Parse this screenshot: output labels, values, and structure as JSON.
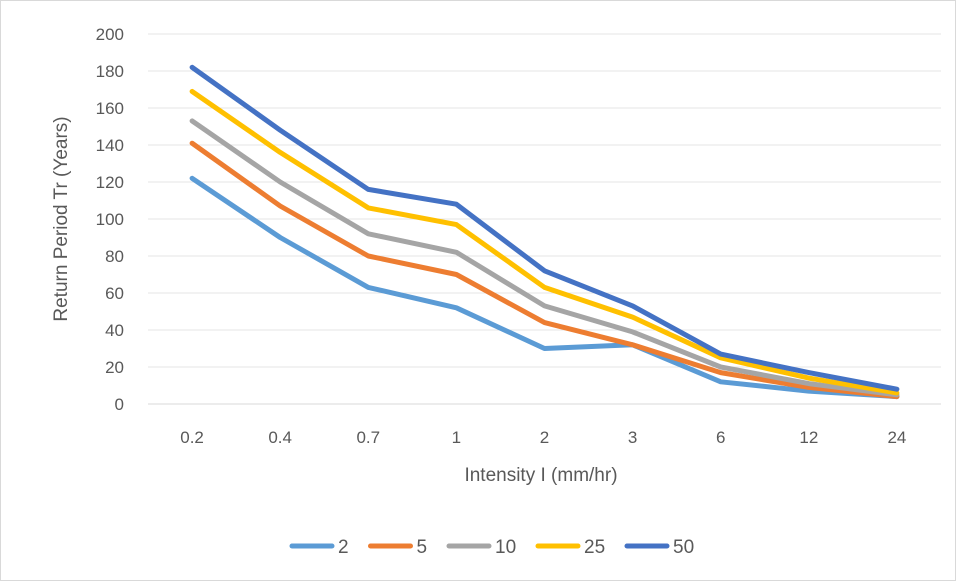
{
  "chart_data": {
    "type": "line",
    "title": "",
    "xlabel": "Intensity I (mm/hr)",
    "ylabel": "Return Period Tr (Years)",
    "categories": [
      "0.2",
      "0.4",
      "0.7",
      "1",
      "2",
      "3",
      "6",
      "12",
      "24"
    ],
    "ylim": [
      0,
      200
    ],
    "yticks": [
      0,
      20,
      40,
      60,
      80,
      100,
      120,
      140,
      160,
      180,
      200
    ],
    "grid": true,
    "legend_position": "bottom",
    "series": [
      {
        "name": "2",
        "color": "#5b9bd5",
        "values": [
          122,
          90,
          63,
          52,
          30,
          32,
          12,
          7,
          4
        ]
      },
      {
        "name": "5",
        "color": "#ed7d31",
        "values": [
          141,
          107,
          80,
          70,
          44,
          32,
          17,
          9,
          4
        ]
      },
      {
        "name": "10",
        "color": "#a5a5a5",
        "values": [
          153,
          120,
          92,
          82,
          53,
          39,
          20,
          11,
          5
        ]
      },
      {
        "name": "25",
        "color": "#ffc000",
        "values": [
          169,
          136,
          106,
          97,
          63,
          47,
          25,
          14,
          6
        ]
      },
      {
        "name": "50",
        "color": "#4472c4",
        "values": [
          182,
          148,
          116,
          108,
          72,
          53,
          27,
          17,
          8
        ]
      }
    ]
  }
}
